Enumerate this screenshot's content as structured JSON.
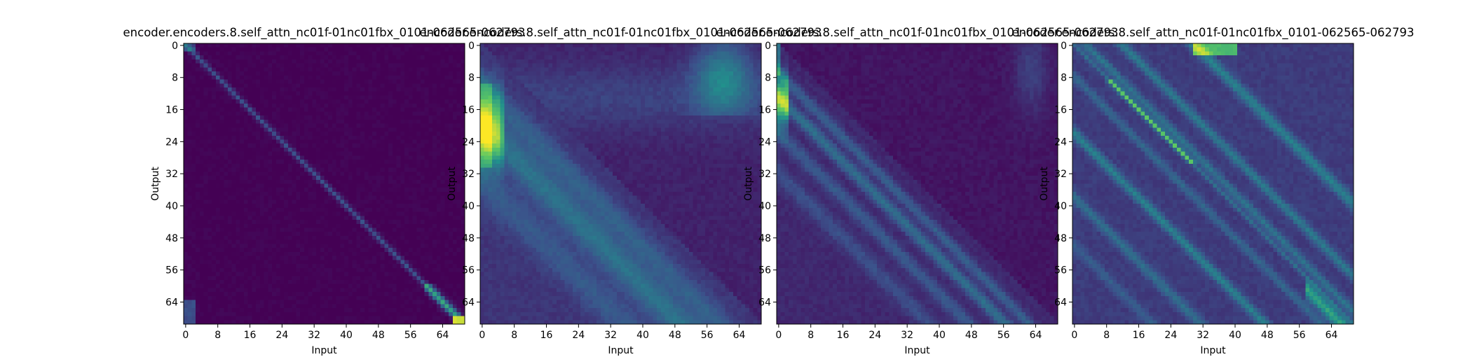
{
  "colormap": [
    "#440154",
    "#3b528b",
    "#21918c",
    "#5ec962",
    "#fde725"
  ],
  "chart_data": [
    {
      "type": "heatmap",
      "title": "encoder.encoders.8.self_attn_nc01f-01nc01fbx_0101-062565-062793",
      "xlabel": "Input",
      "ylabel": "Output",
      "size": 70,
      "xticks": [
        0,
        8,
        16,
        24,
        32,
        40,
        48,
        56,
        64
      ],
      "yticks": [
        0,
        8,
        16,
        24,
        32,
        40,
        48,
        56,
        64
      ],
      "pattern": "sharp-diagonal"
    },
    {
      "type": "heatmap",
      "title": "encoder.encoders.8.self_attn_nc01f-01nc01fbx_0101-062565-062793",
      "xlabel": "Input",
      "ylabel": "Output",
      "size": 70,
      "xticks": [
        0,
        8,
        16,
        24,
        32,
        40,
        48,
        56,
        64
      ],
      "yticks": [
        0,
        8,
        16,
        24,
        32,
        40,
        48,
        56,
        64
      ],
      "pattern": "lower-left-bands"
    },
    {
      "type": "heatmap",
      "title": "encoder.encoders.8.self_attn_nc01f-01nc01fbx_0101-062565-062793",
      "xlabel": "Input",
      "ylabel": "Output",
      "size": 70,
      "xticks": [
        0,
        8,
        16,
        24,
        32,
        40,
        48,
        56,
        64
      ],
      "yticks": [
        0,
        8,
        16,
        24,
        32,
        40,
        48,
        56,
        64
      ],
      "pattern": "lower-stripes"
    },
    {
      "type": "heatmap",
      "title": "encoder.encoders.8.self_attn_nc01f-01nc01fbx_0101-062565-062793",
      "xlabel": "Input",
      "ylabel": "Output",
      "size": 70,
      "xticks": [
        0,
        8,
        16,
        24,
        32,
        40,
        48,
        56,
        64
      ],
      "yticks": [
        0,
        8,
        16,
        24,
        32,
        40,
        48,
        56,
        64
      ],
      "pattern": "multi-diagonal"
    }
  ]
}
